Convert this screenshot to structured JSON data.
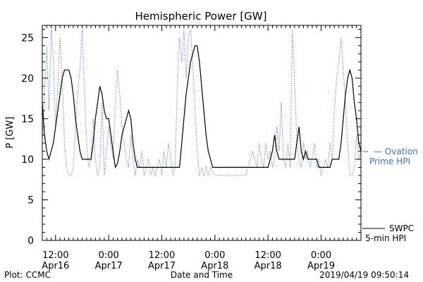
{
  "chart_data": {
    "type": "line",
    "title": "Hemispheric Power [GW]",
    "xlabel": "Date and Time",
    "ylabel": "P [GW]",
    "x_unit": "hours since 2019/04/16 00:00",
    "xlim": [
      9,
      81
    ],
    "ylim": [
      0,
      26.5
    ],
    "y_ticks": [
      0,
      5,
      10,
      15,
      20,
      25
    ],
    "x_ticks": [
      {
        "x": 12,
        "line1": "12:00",
        "line2": "Apr16"
      },
      {
        "x": 24,
        "line1": "0:00",
        "line2": "Apr17"
      },
      {
        "x": 36,
        "line1": "12:00",
        "line2": "Apr17"
      },
      {
        "x": 48,
        "line1": "0:00",
        "line2": "Apr18"
      },
      {
        "x": 60,
        "line1": "12:00",
        "line2": "Apr18"
      },
      {
        "x": 72,
        "line1": "0:00",
        "line2": "Apr19"
      }
    ],
    "grid": false,
    "legend_position": "right",
    "series": [
      {
        "name_line1": "SWPC",
        "name_line2": "5-min HPI",
        "color": "#000000",
        "style": "solid",
        "points": [
          [
            9,
            17
          ],
          [
            9.5,
            13
          ],
          [
            10,
            11
          ],
          [
            10.5,
            10
          ],
          [
            11,
            11
          ],
          [
            11.5,
            12
          ],
          [
            12,
            14
          ],
          [
            12.5,
            16
          ],
          [
            13,
            18
          ],
          [
            13.5,
            20
          ],
          [
            14,
            21
          ],
          [
            15,
            21
          ],
          [
            15.5,
            20
          ],
          [
            16,
            18
          ],
          [
            16.5,
            15
          ],
          [
            17,
            13
          ],
          [
            17.5,
            11
          ],
          [
            18,
            10
          ],
          [
            19,
            10
          ],
          [
            20,
            10
          ],
          [
            20.5,
            12
          ],
          [
            21,
            15
          ],
          [
            21.5,
            17
          ],
          [
            22,
            19
          ],
          [
            22.5,
            18
          ],
          [
            23,
            16
          ],
          [
            23.5,
            15
          ],
          [
            24,
            15
          ],
          [
            24.5,
            13
          ],
          [
            25,
            11
          ],
          [
            25.5,
            9
          ],
          [
            26,
            9.5
          ],
          [
            26.5,
            11
          ],
          [
            27,
            13
          ],
          [
            27.5,
            14
          ],
          [
            28,
            15
          ],
          [
            28.5,
            16
          ],
          [
            29,
            15
          ],
          [
            29.5,
            12
          ],
          [
            30,
            10
          ],
          [
            30.5,
            9
          ],
          [
            31,
            9
          ],
          [
            33,
            9
          ],
          [
            34,
            9
          ],
          [
            35,
            9
          ],
          [
            36,
            9
          ],
          [
            38,
            9
          ],
          [
            39,
            9
          ],
          [
            40,
            9
          ],
          [
            40.5,
            12
          ],
          [
            41,
            15
          ],
          [
            41.5,
            18
          ],
          [
            42,
            20
          ],
          [
            42.5,
            22
          ],
          [
            43,
            23
          ],
          [
            43.5,
            24
          ],
          [
            44,
            24
          ],
          [
            44.5,
            22
          ],
          [
            45,
            19
          ],
          [
            45.5,
            16
          ],
          [
            46,
            13
          ],
          [
            46.5,
            11
          ],
          [
            47,
            10
          ],
          [
            47.5,
            9
          ],
          [
            50,
            9
          ],
          [
            54,
            9
          ],
          [
            57,
            9
          ],
          [
            58,
            9
          ],
          [
            60,
            9
          ],
          [
            60.5,
            10
          ],
          [
            61,
            11
          ],
          [
            61.5,
            13
          ],
          [
            62,
            11
          ],
          [
            62.5,
            10
          ],
          [
            64,
            10
          ],
          [
            65,
            10
          ],
          [
            66,
            10
          ],
          [
            66.5,
            12
          ],
          [
            67,
            14
          ],
          [
            67.5,
            11
          ],
          [
            68,
            10
          ],
          [
            68.5,
            11
          ],
          [
            69,
            10
          ],
          [
            70,
            10
          ],
          [
            71,
            10
          ],
          [
            71.5,
            9
          ],
          [
            72,
            9
          ],
          [
            73,
            9
          ],
          [
            74,
            9
          ],
          [
            74.5,
            10
          ],
          [
            75,
            10
          ],
          [
            76,
            10
          ],
          [
            76.5,
            12
          ],
          [
            77,
            15
          ],
          [
            77.5,
            18
          ],
          [
            78,
            20
          ],
          [
            78.5,
            21
          ],
          [
            79,
            20
          ],
          [
            79.5,
            17
          ],
          [
            80,
            15
          ],
          [
            80.5,
            12
          ],
          [
            81,
            11
          ]
        ]
      },
      {
        "name_line1": "— Ovation",
        "name_line2": "Prime HPI",
        "color": "#3a6fc0",
        "style": "dotted",
        "points": [
          [
            9,
            12
          ],
          [
            9.5,
            18
          ],
          [
            10,
            24
          ],
          [
            10.5,
            16
          ],
          [
            11,
            26
          ],
          [
            11.5,
            22
          ],
          [
            12,
            14
          ],
          [
            12.5,
            19
          ],
          [
            13,
            25
          ],
          [
            13.5,
            20
          ],
          [
            14,
            12
          ],
          [
            14.5,
            9
          ],
          [
            15,
            8
          ],
          [
            15.5,
            8
          ],
          [
            16,
            9
          ],
          [
            16.5,
            14
          ],
          [
            17,
            18
          ],
          [
            17.5,
            21
          ],
          [
            18,
            26
          ],
          [
            18.5,
            19
          ],
          [
            19,
            12
          ],
          [
            19.5,
            9
          ],
          [
            20,
            10
          ],
          [
            20.5,
            15
          ],
          [
            21,
            10
          ],
          [
            21.5,
            8
          ],
          [
            22,
            9
          ],
          [
            22.5,
            17
          ],
          [
            23,
            8
          ],
          [
            23.5,
            11
          ],
          [
            24,
            14
          ],
          [
            24.5,
            12
          ],
          [
            25,
            10
          ],
          [
            25.5,
            17
          ],
          [
            26,
            21
          ],
          [
            26.5,
            18
          ],
          [
            27,
            14
          ],
          [
            27.5,
            12
          ],
          [
            28,
            10
          ],
          [
            28.5,
            9
          ],
          [
            29,
            13
          ],
          [
            29.5,
            10
          ],
          [
            30,
            8
          ],
          [
            30.5,
            10
          ],
          [
            31,
            9
          ],
          [
            31.5,
            11
          ],
          [
            32,
            8
          ],
          [
            32.5,
            9
          ],
          [
            33,
            10
          ],
          [
            33.5,
            8
          ],
          [
            34,
            9
          ],
          [
            34.5,
            8
          ],
          [
            35,
            9
          ],
          [
            35.5,
            10
          ],
          [
            36,
            8
          ],
          [
            36.5,
            11
          ],
          [
            37,
            9
          ],
          [
            37.5,
            12
          ],
          [
            38,
            10
          ],
          [
            38.5,
            8
          ],
          [
            39,
            9
          ],
          [
            39.5,
            19
          ],
          [
            40,
            25
          ],
          [
            40.5,
            22
          ],
          [
            41,
            26
          ],
          [
            41.5,
            20
          ],
          [
            42,
            25
          ],
          [
            42.5,
            26
          ],
          [
            43,
            22
          ],
          [
            43.5,
            16
          ],
          [
            44,
            11
          ],
          [
            44.5,
            8
          ],
          [
            45,
            9
          ],
          [
            45.5,
            8
          ],
          [
            46,
            9
          ],
          [
            46.5,
            8
          ],
          [
            47,
            9
          ],
          [
            48,
            8
          ],
          [
            50,
            8
          ],
          [
            52,
            8
          ],
          [
            54,
            8
          ],
          [
            55,
            8
          ],
          [
            55.5,
            9
          ],
          [
            56,
            10
          ],
          [
            56.5,
            11
          ],
          [
            57,
            10
          ],
          [
            57.5,
            9
          ],
          [
            58,
            12
          ],
          [
            58.5,
            10
          ],
          [
            59,
            9
          ],
          [
            59.5,
            12
          ],
          [
            60,
            10
          ],
          [
            60.5,
            11
          ],
          [
            61,
            9
          ],
          [
            61.5,
            10
          ],
          [
            62,
            14
          ],
          [
            62.5,
            11
          ],
          [
            63,
            17
          ],
          [
            63.5,
            10
          ],
          [
            64,
            9
          ],
          [
            64.5,
            12
          ],
          [
            65,
            9
          ],
          [
            65.5,
            26
          ],
          [
            66,
            20
          ],
          [
            66.5,
            12
          ],
          [
            67,
            10
          ],
          [
            67.5,
            9
          ],
          [
            68,
            12
          ],
          [
            68.5,
            10
          ],
          [
            69,
            11
          ],
          [
            69.5,
            9
          ],
          [
            70,
            10
          ],
          [
            70.5,
            12
          ],
          [
            71,
            9
          ],
          [
            71.5,
            10
          ],
          [
            72,
            8
          ],
          [
            72.5,
            9
          ],
          [
            73,
            10
          ],
          [
            73.5,
            9
          ],
          [
            74,
            12
          ],
          [
            74.5,
            10
          ],
          [
            75,
            16
          ],
          [
            75.5,
            20
          ],
          [
            76,
            22
          ],
          [
            76.5,
            25
          ],
          [
            77,
            21
          ],
          [
            77.5,
            17
          ],
          [
            78,
            12
          ],
          [
            78.5,
            8
          ],
          [
            79,
            8
          ],
          [
            79.5,
            9
          ],
          [
            80,
            13
          ],
          [
            80.5,
            10
          ],
          [
            81,
            11
          ]
        ]
      }
    ],
    "footer_left": "Plot: CCMC",
    "footer_right": "2019/04/19 09:50:14"
  }
}
